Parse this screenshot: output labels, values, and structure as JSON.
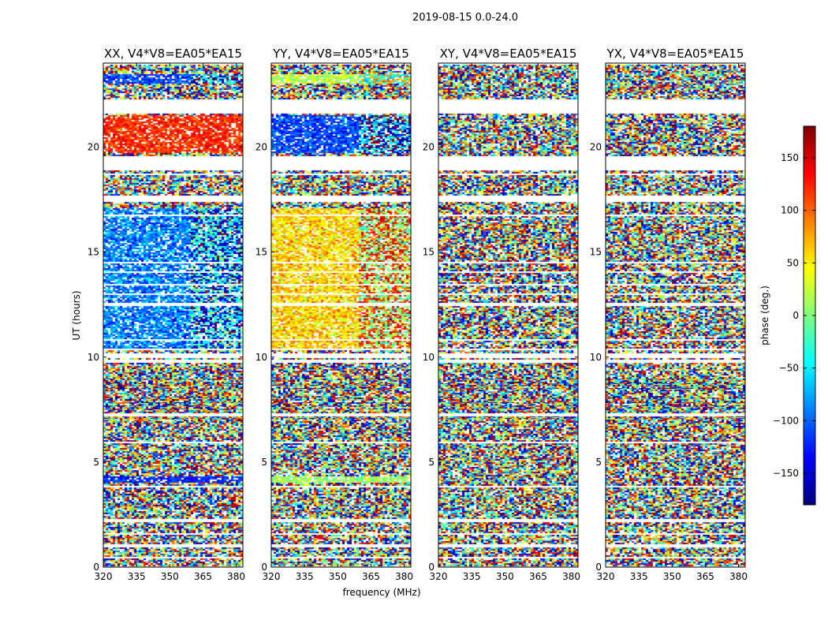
{
  "chart_data": {
    "type": "heatmap",
    "suptitle": "2019-08-15 0.0-24.0",
    "xlabel": "frequency (MHz)",
    "ylabel": "UT (hours)",
    "xlim": [
      320,
      383
    ],
    "ylim": [
      0,
      24
    ],
    "xticks": [
      320,
      335,
      350,
      365,
      380
    ],
    "yticks": [
      0,
      5,
      10,
      15,
      20
    ],
    "colorbar": {
      "label": "phase (deg.)",
      "range": [
        -180,
        180
      ],
      "ticks": [
        150,
        100,
        50,
        0,
        -50,
        -100,
        -150
      ],
      "tick_labels": [
        "150",
        "100",
        "50",
        "0",
        "−50",
        "−100",
        "−150"
      ],
      "colormap": [
        "#00007f",
        "#0000ff",
        "#007fff",
        "#00ffff",
        "#7fff7f",
        "#ffff00",
        "#ff7f00",
        "#ff0000",
        "#7f0000"
      ]
    },
    "flagged_hour_ranges": [
      [
        0.95,
        1.1
      ],
      [
        2.15,
        2.3
      ],
      [
        9.7,
        9.85
      ],
      [
        9.95,
        10.15
      ],
      [
        17.4,
        17.7
      ],
      [
        18.9,
        19.6
      ],
      [
        21.6,
        22.3
      ],
      [
        23.9,
        24.0
      ]
    ],
    "panels": [
      {
        "title": "XX, V4*V8=EA05*EA15",
        "signal_bands": [
          {
            "t0": 23.0,
            "t1": 23.5,
            "phase": -110,
            "spread": 35
          },
          {
            "t0": 19.75,
            "t1": 21.55,
            "phase": 120,
            "spread": 30
          },
          {
            "t0": 10.3,
            "t1": 17.1,
            "phase": -90,
            "spread": 45
          },
          {
            "t0": 4.0,
            "t1": 4.35,
            "phase": -120,
            "spread": 25
          }
        ]
      },
      {
        "title": "YY, V4*V8=EA05*EA15",
        "signal_bands": [
          {
            "t0": 23.0,
            "t1": 23.5,
            "phase": 20,
            "spread": 35
          },
          {
            "t0": 19.75,
            "t1": 21.55,
            "phase": -110,
            "spread": 35
          },
          {
            "t0": 10.3,
            "t1": 17.1,
            "phase": 60,
            "spread": 40
          },
          {
            "t0": 4.0,
            "t1": 4.35,
            "phase": 10,
            "spread": 25
          }
        ]
      },
      {
        "title": "XY, V4*V8=EA05*EA15",
        "signal_bands": []
      },
      {
        "title": "YX, V4*V8=EA05*EA15",
        "signal_bands": []
      }
    ]
  }
}
